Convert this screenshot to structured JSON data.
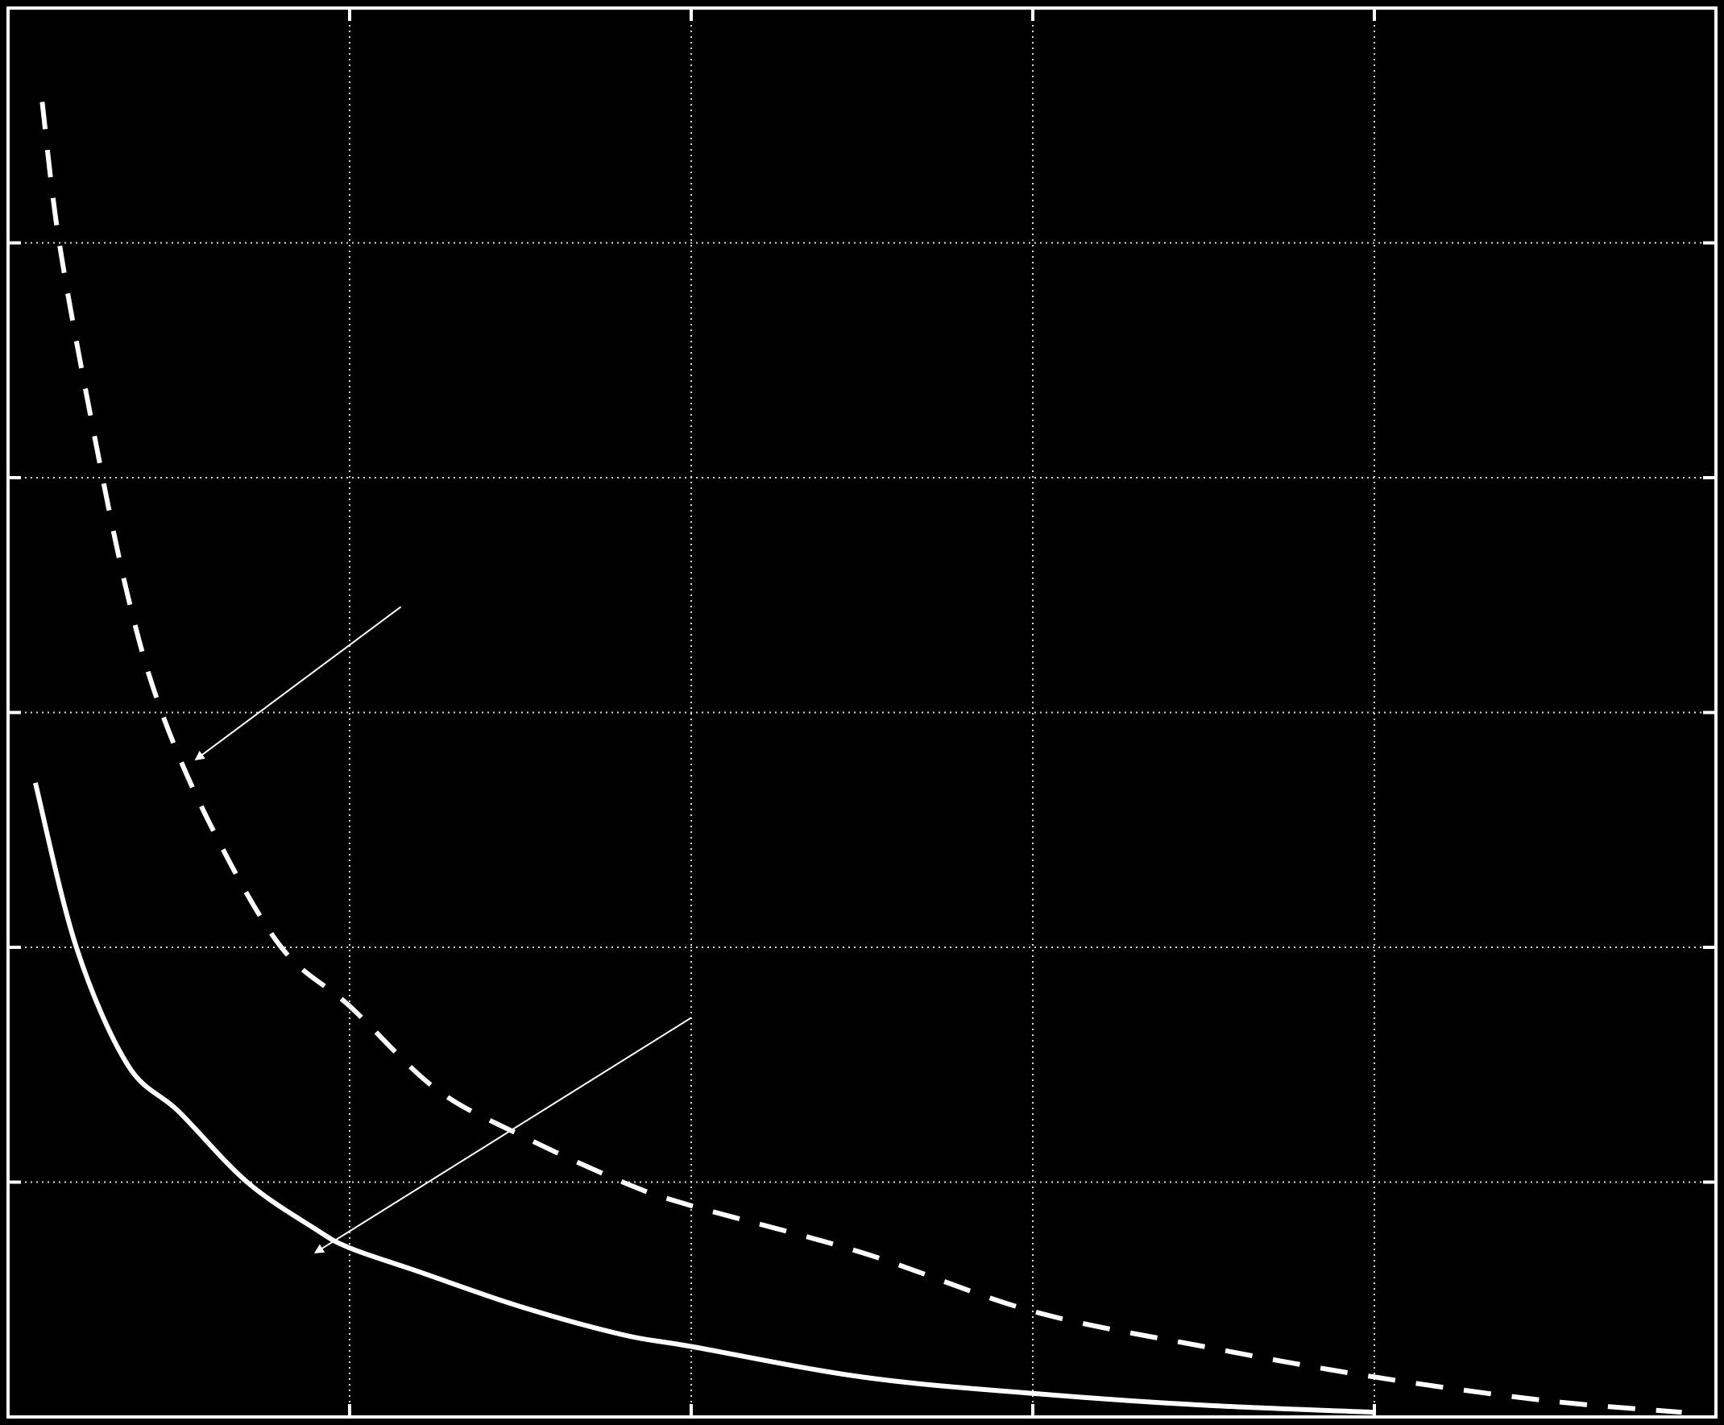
{
  "chart_data": {
    "type": "line",
    "title": "",
    "xlabel": "",
    "ylabel": "",
    "xlim": [
      0,
      5
    ],
    "ylim": [
      0,
      6
    ],
    "x_gridlines": [
      1,
      2,
      3,
      4
    ],
    "y_gridlines": [
      1,
      2,
      3,
      4,
      5
    ],
    "grid": true,
    "grid_style": "dotted",
    "background": "#000000",
    "foreground": "#ffffff",
    "series": [
      {
        "style": "dashed",
        "x": [
          0.1,
          0.15,
          0.25,
          0.35,
          0.45,
          0.6,
          0.8,
          1.0,
          1.25,
          1.5,
          1.8,
          2.0,
          2.5,
          3.0,
          3.5,
          4.0,
          4.5,
          4.9
        ],
        "y": [
          5.6,
          5.0,
          4.2,
          3.5,
          3.0,
          2.5,
          2.0,
          1.75,
          1.4,
          1.2,
          1.0,
          0.9,
          0.7,
          0.45,
          0.3,
          0.17,
          0.07,
          0.02
        ]
      },
      {
        "style": "solid",
        "x": [
          0.08,
          0.2,
          0.35,
          0.5,
          0.7,
          0.9,
          1.0,
          1.2,
          1.5,
          1.8,
          2.0,
          2.5,
          3.0,
          3.5,
          4.0
        ],
        "y": [
          2.7,
          2.0,
          1.5,
          1.3,
          1.0,
          0.8,
          0.72,
          0.62,
          0.47,
          0.35,
          0.3,
          0.17,
          0.1,
          0.05,
          0.02
        ]
      }
    ],
    "annotations": [
      {
        "from": [
          1.15,
          3.45
        ],
        "to": [
          0.55,
          2.8
        ]
      },
      {
        "from": [
          2.0,
          1.7
        ],
        "to": [
          0.9,
          0.7
        ]
      }
    ]
  }
}
